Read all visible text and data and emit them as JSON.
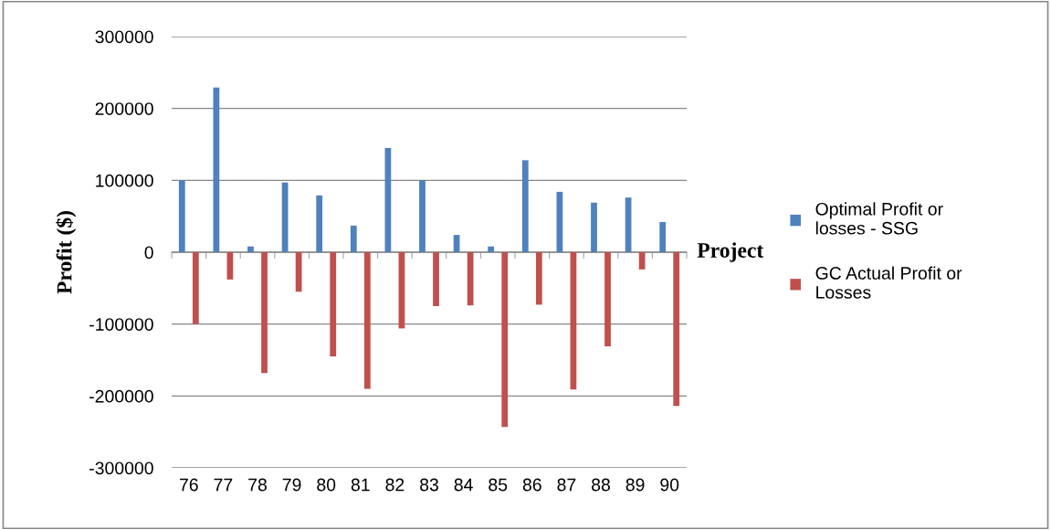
{
  "chart_data": {
    "type": "bar",
    "xlabel": "Project",
    "ylabel": "Profit ($)",
    "categories": [
      "76",
      "77",
      "78",
      "79",
      "80",
      "81",
      "82",
      "83",
      "84",
      "85",
      "86",
      "87",
      "88",
      "89",
      "90"
    ],
    "series": [
      {
        "name": "Optimal Profit or losses - SSG",
        "color": "#4f81bd",
        "values": [
          100000,
          229000,
          8000,
          97000,
          79000,
          37000,
          145000,
          100000,
          24000,
          8000,
          128000,
          84000,
          69000,
          76000,
          42000
        ]
      },
      {
        "name": "GC Actual Profit or Losses",
        "color": "#c0504d",
        "values": [
          -100000,
          -38000,
          -168000,
          -55000,
          -145000,
          -190000,
          -106000,
          -75000,
          -74000,
          -243000,
          -73000,
          -191000,
          -131000,
          -24000,
          -214000
        ]
      }
    ],
    "ylim": [
      -300000,
      300000
    ],
    "yticks": [
      -300000,
      -200000,
      -100000,
      0,
      100000,
      200000,
      300000
    ],
    "grid": "y",
    "legend": "right"
  }
}
